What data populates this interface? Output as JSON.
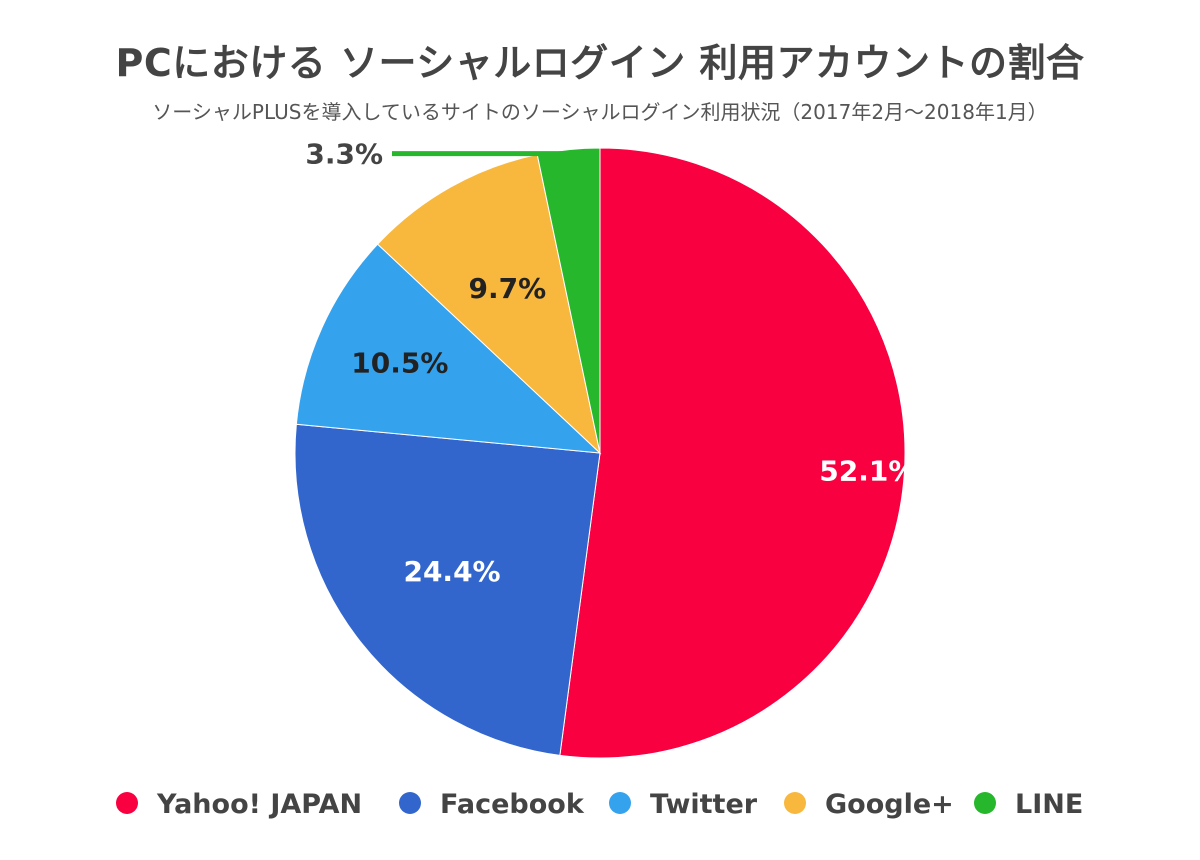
{
  "chart_data": {
    "type": "pie",
    "title": "PCにおける ソーシャルログイン 利用アカウントの割合",
    "subtitle": "ソーシャルPLUSを導入しているサイトのソーシャルログイン利用状況（2017年2月〜2018年1月）",
    "categories": [
      "Yahoo! JAPAN",
      "Facebook",
      "Twitter",
      "Google+",
      "LINE"
    ],
    "values": [
      52.1,
      24.4,
      10.5,
      9.7,
      3.3
    ],
    "labels": [
      "52.1%",
      "24.4%",
      "10.5%",
      "9.7%",
      "3.3%"
    ],
    "colors": [
      "#f90041",
      "#3366cc",
      "#35a2ed",
      "#f7b83d",
      "#27b72d"
    ],
    "label_colors": [
      "#ffffff",
      "#ffffff",
      "#222222",
      "#222222",
      "#444444"
    ],
    "legend_position": "bottom"
  }
}
